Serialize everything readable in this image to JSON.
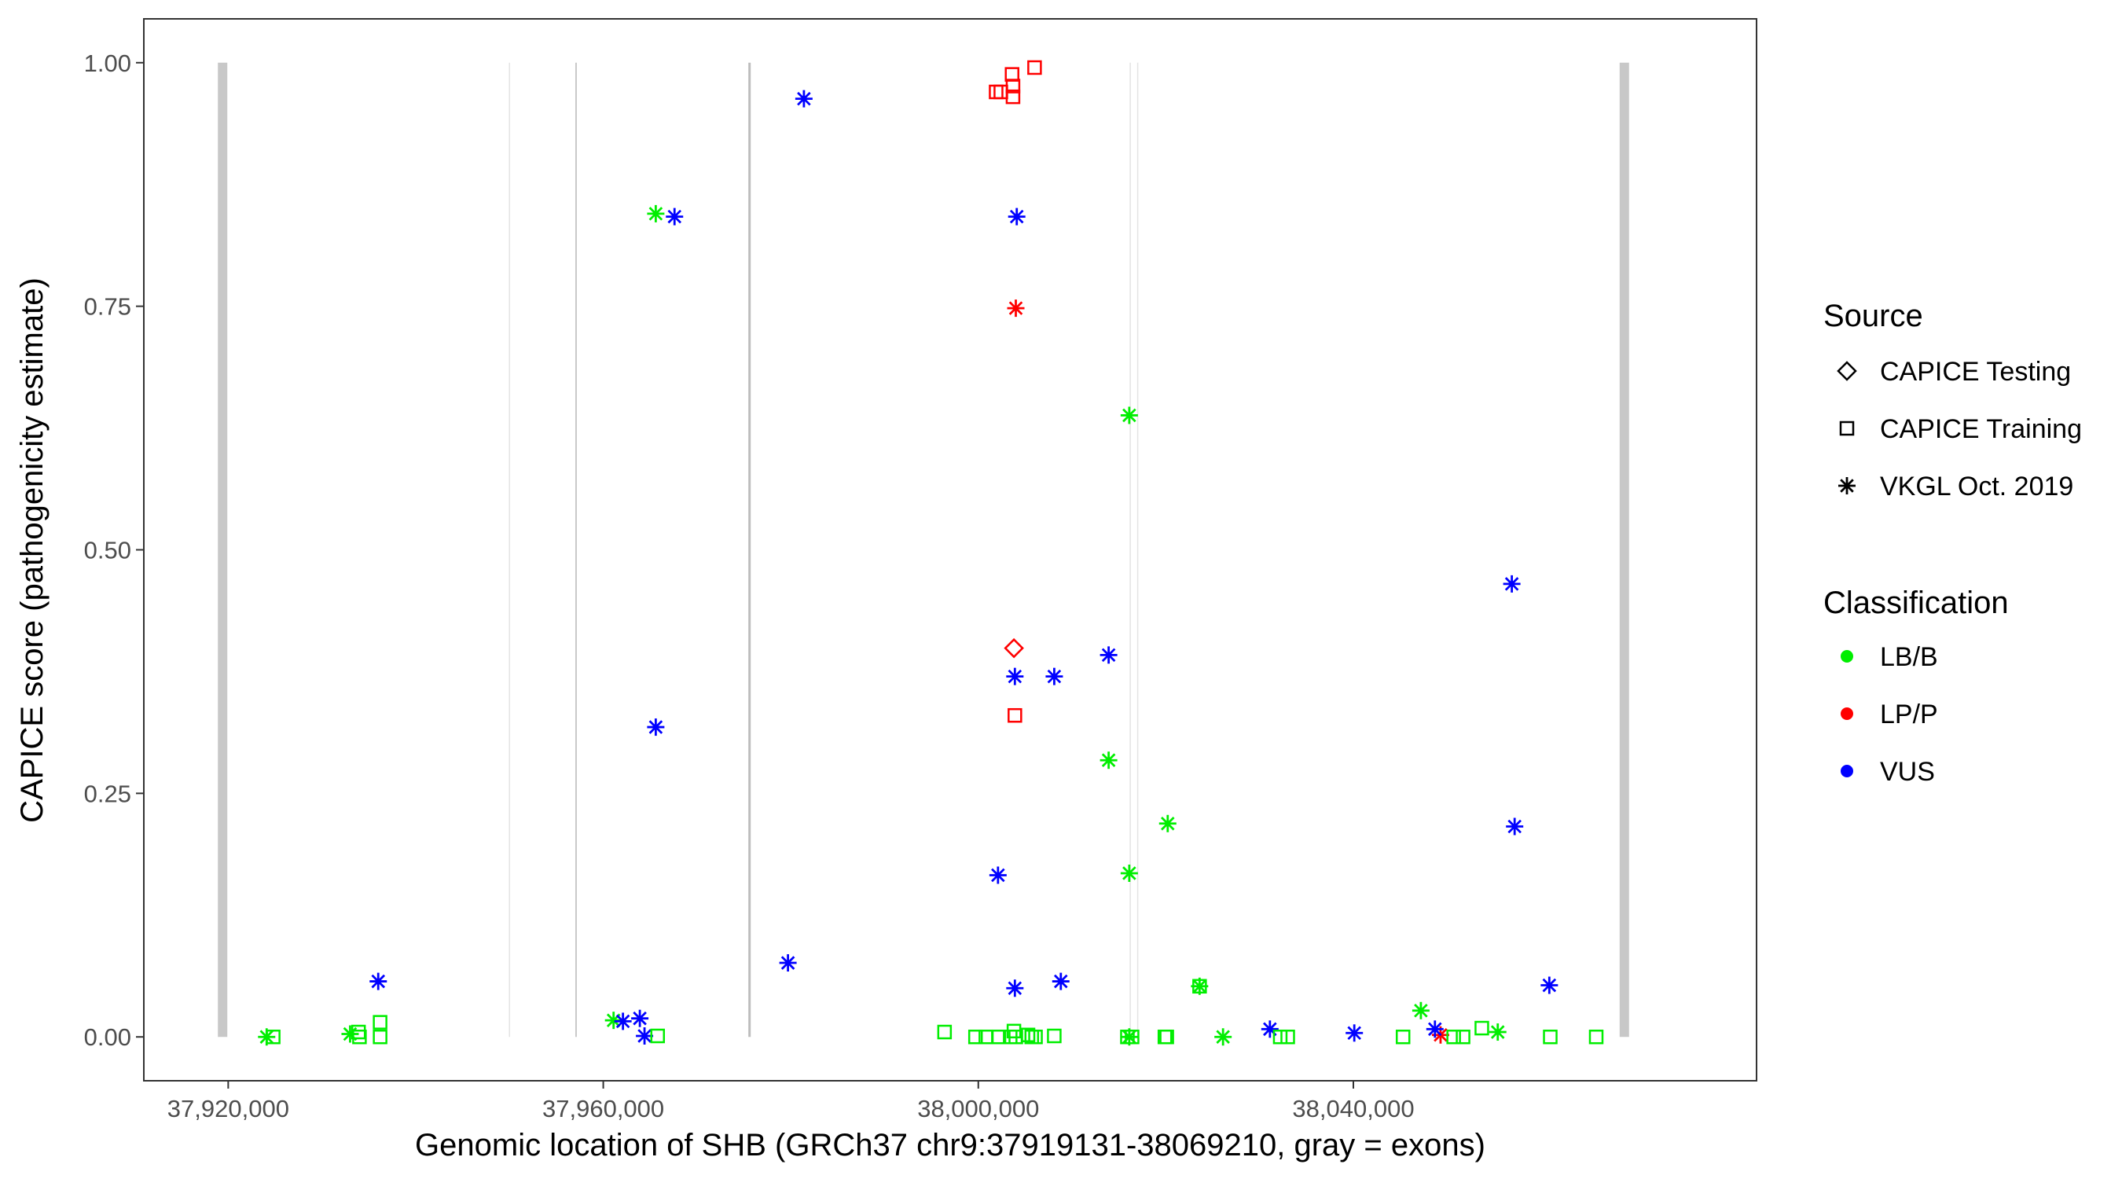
{
  "chart_data": {
    "type": "scatter",
    "xlabel": "Genomic location of SHB (GRCh37 chr9:37919131-38069210, gray = exons)",
    "ylabel": "CAPICE score (pathogenicity estimate)",
    "xlim": [
      37911000,
      38083000
    ],
    "ylim": [
      -0.045,
      1.045
    ],
    "x_ticks": [
      37920000,
      37960000,
      38000000,
      38040000
    ],
    "x_tick_labels": [
      "37,920,000",
      "37,960,000",
      "38,000,000",
      "38,040,000"
    ],
    "y_ticks": [
      0,
      0.25,
      0.5,
      0.75,
      1.0
    ],
    "y_tick_labels": [
      "0.00",
      "0.25",
      "0.50",
      "0.75",
      "1.00"
    ],
    "grid": false,
    "legend_placement": "right",
    "exons": [
      {
        "x": 37919400,
        "weight": "thick"
      },
      {
        "x": 37950000,
        "weight": "faint"
      },
      {
        "x": 37957100,
        "weight": "thin"
      },
      {
        "x": 37975600,
        "weight": "medium"
      },
      {
        "x": 38016200,
        "weight": "faint"
      },
      {
        "x": 38017000,
        "weight": "faint"
      },
      {
        "x": 38068900,
        "weight": "thick"
      }
    ],
    "legend": {
      "source_title": "Source",
      "sources": [
        {
          "key": "testing",
          "label": "CAPICE Testing",
          "shape": "diamond"
        },
        {
          "key": "training",
          "label": "CAPICE Training",
          "shape": "square"
        },
        {
          "key": "vkgl",
          "label": "VKGL Oct. 2019",
          "shape": "asterisk"
        }
      ],
      "class_title": "Classification",
      "classes": [
        {
          "key": "LB/B",
          "label": "LB/B",
          "color": "#00ee00"
        },
        {
          "key": "LP/P",
          "label": "LP/P",
          "color": "#ff0000"
        },
        {
          "key": "VUS",
          "label": "VUS",
          "color": "#0000ff"
        }
      ]
    },
    "series": [
      {
        "name": "VKGL Oct. 2019 / LB/B",
        "source": "vkgl",
        "class": "LB/B",
        "points": [
          [
            37924100,
            0.0
          ],
          [
            37933000,
            0.003
          ],
          [
            37961100,
            0.017
          ],
          [
            37965600,
            0.845
          ],
          [
            38013900,
            0.284
          ],
          [
            38016100,
            0.638
          ],
          [
            38016100,
            0.168
          ],
          [
            38016100,
            0.0
          ],
          [
            38020200,
            0.219
          ],
          [
            38023600,
            0.052
          ],
          [
            38026100,
            0.0
          ],
          [
            38047200,
            0.027
          ],
          [
            38055400,
            0.005
          ]
        ]
      },
      {
        "name": "VKGL Oct. 2019 / LP/P",
        "source": "vkgl",
        "class": "LP/P",
        "points": [
          [
            38004000,
            0.748
          ],
          [
            38049300,
            0.002
          ]
        ]
      },
      {
        "name": "VKGL Oct. 2019 / VUS",
        "source": "vkgl",
        "class": "VUS",
        "points": [
          [
            37936000,
            0.057
          ],
          [
            37962100,
            0.016
          ],
          [
            37963900,
            0.019
          ],
          [
            37964400,
            0.001
          ],
          [
            37967600,
            0.842
          ],
          [
            37965600,
            0.318
          ],
          [
            37979700,
            0.076
          ],
          [
            37981400,
            0.963
          ],
          [
            38002100,
            0.166
          ],
          [
            38003900,
            0.37
          ],
          [
            38003900,
            0.05
          ],
          [
            38004100,
            0.842
          ],
          [
            38008100,
            0.37
          ],
          [
            38008800,
            0.057
          ],
          [
            38013900,
            0.392
          ],
          [
            38031100,
            0.008
          ],
          [
            38040100,
            0.004
          ],
          [
            38048700,
            0.008
          ],
          [
            38056900,
            0.465
          ],
          [
            38057200,
            0.216
          ],
          [
            38060900,
            0.053
          ]
        ]
      },
      {
        "name": "CAPICE Testing / LP/P",
        "source": "testing",
        "class": "LP/P",
        "points": [
          [
            38003800,
            0.399
          ]
        ]
      },
      {
        "name": "CAPICE Training / LP/P",
        "source": "training",
        "class": "LP/P",
        "points": [
          [
            38001900,
            0.97
          ],
          [
            38002400,
            0.97
          ],
          [
            38003600,
            0.988
          ],
          [
            38003700,
            0.976
          ],
          [
            38003700,
            0.965
          ],
          [
            38006000,
            0.995
          ],
          [
            38003900,
            0.33
          ]
        ]
      },
      {
        "name": "CAPICE Training / LB/B",
        "source": "training",
        "class": "LB/B",
        "points": [
          [
            37924800,
            0.0
          ],
          [
            37933900,
            0.005
          ],
          [
            37934000,
            0.0
          ],
          [
            37936200,
            0.015
          ],
          [
            37936200,
            0.0
          ],
          [
            37965800,
            0.001
          ],
          [
            37996400,
            0.005
          ],
          [
            37999700,
            0.0
          ],
          [
            38000800,
            0.0
          ],
          [
            38002200,
            0.0
          ],
          [
            38003400,
            0.0
          ],
          [
            38003800,
            0.006
          ],
          [
            38004000,
            0.0
          ],
          [
            38005300,
            0.002
          ],
          [
            38005700,
            0.0
          ],
          [
            38006100,
            0.0
          ],
          [
            38008100,
            0.001
          ],
          [
            38015900,
            0.0
          ],
          [
            38016400,
            0.0
          ],
          [
            38019900,
            0.0
          ],
          [
            38020100,
            0.0
          ],
          [
            38023600,
            0.052
          ],
          [
            38032200,
            0.0
          ],
          [
            38033000,
            0.0
          ],
          [
            38045300,
            0.0
          ],
          [
            38050700,
            0.0
          ],
          [
            38051700,
            0.0
          ],
          [
            38053700,
            0.009
          ],
          [
            38061000,
            0.0
          ],
          [
            38065900,
            0.0
          ]
        ]
      }
    ]
  }
}
